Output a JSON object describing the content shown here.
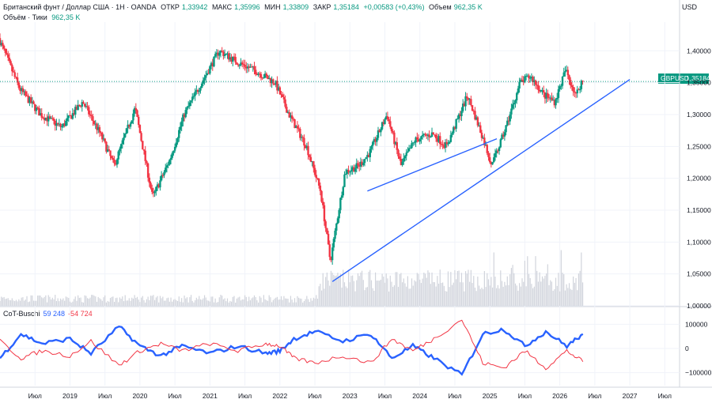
{
  "header": {
    "line1": {
      "symbol": "Британский фунт / Доллар США · 1Н · OANDA",
      "open_label": "ОТКР",
      "open": "1,33942",
      "high_label": "МАКС",
      "high": "1,35996",
      "low_label": "МИН",
      "low": "1,33809",
      "close_label": "ЗАКР",
      "close": "1,35184",
      "change": "+0,00583 (+0,43%)",
      "vol_label": "Объем",
      "vol": "962,35 K"
    },
    "line2": {
      "label": "Объём · Тики",
      "value": "962,35 K"
    }
  },
  "price_scale": {
    "currency": "USD"
  },
  "last_price": {
    "symbol": "GBPUSD",
    "value": "1,35184"
  },
  "indicator": {
    "name": "CoT-Buschi",
    "value1": "59 248",
    "value2": "-54 724"
  },
  "colors": {
    "up": "#089981",
    "down": "#f23645",
    "trendline": "#2962ff",
    "cot1": "#2962ff",
    "cot2": "#f23645",
    "volume": "#d1d4dc",
    "grid": "#f0f3fa"
  },
  "chart_data": [
    {
      "type": "candlestick",
      "symbol": "GBPUSD",
      "timeframe": "1W",
      "y_ticks": [
        "1,40000",
        "1,35000",
        "1,30000",
        "1,25000",
        "1,20000",
        "1,15000",
        "1,10000",
        "1,05000",
        "1,00000"
      ],
      "x_ticks": [
        "Июл",
        "2019",
        "Июл",
        "2020",
        "Июл",
        "2021",
        "Июл",
        "2022",
        "Июл",
        "2023",
        "Июл",
        "2024",
        "Июл",
        "2025",
        "Июл",
        "2026",
        "Июл",
        "2027",
        "Июл"
      ],
      "ylim": [
        1.0,
        1.445
      ],
      "price_path": [
        {
          "t": 2018.0,
          "p": 1.42
        },
        {
          "t": 2018.3,
          "p": 1.34
        },
        {
          "t": 2018.6,
          "p": 1.3
        },
        {
          "t": 2018.9,
          "p": 1.28
        },
        {
          "t": 2019.2,
          "p": 1.32
        },
        {
          "t": 2019.45,
          "p": 1.27
        },
        {
          "t": 2019.65,
          "p": 1.22
        },
        {
          "t": 2019.95,
          "p": 1.31
        },
        {
          "t": 2020.2,
          "p": 1.17
        },
        {
          "t": 2020.45,
          "p": 1.23
        },
        {
          "t": 2020.65,
          "p": 1.3
        },
        {
          "t": 2020.95,
          "p": 1.36
        },
        {
          "t": 2021.15,
          "p": 1.4
        },
        {
          "t": 2021.45,
          "p": 1.38
        },
        {
          "t": 2021.65,
          "p": 1.37
        },
        {
          "t": 2021.95,
          "p": 1.35
        },
        {
          "t": 2022.15,
          "p": 1.3
        },
        {
          "t": 2022.4,
          "p": 1.25
        },
        {
          "t": 2022.6,
          "p": 1.18
        },
        {
          "t": 2022.74,
          "p": 1.07
        },
        {
          "t": 2022.95,
          "p": 1.21
        },
        {
          "t": 2023.15,
          "p": 1.22
        },
        {
          "t": 2023.3,
          "p": 1.24
        },
        {
          "t": 2023.55,
          "p": 1.3
        },
        {
          "t": 2023.75,
          "p": 1.22
        },
        {
          "t": 2023.95,
          "p": 1.26
        },
        {
          "t": 2024.2,
          "p": 1.27
        },
        {
          "t": 2024.4,
          "p": 1.25
        },
        {
          "t": 2024.55,
          "p": 1.29
        },
        {
          "t": 2024.7,
          "p": 1.33
        },
        {
          "t": 2024.9,
          "p": 1.27
        },
        {
          "t": 2025.05,
          "p": 1.22
        },
        {
          "t": 2025.25,
          "p": 1.28
        },
        {
          "t": 2025.45,
          "p": 1.35
        },
        {
          "t": 2025.6,
          "p": 1.36
        },
        {
          "t": 2025.8,
          "p": 1.33
        },
        {
          "t": 2025.95,
          "p": 1.32
        },
        {
          "t": 2026.1,
          "p": 1.37
        },
        {
          "t": 2026.25,
          "p": 1.33
        },
        {
          "t": 2026.33,
          "p": 1.352
        }
      ],
      "trendlines": [
        {
          "from": {
            "t": 2022.75,
            "p": 1.038
          },
          "to": {
            "t": 2027.0,
            "p": 1.355
          }
        },
        {
          "from": {
            "t": 2023.25,
            "p": 1.18
          },
          "to": {
            "t": 2025.1,
            "p": 1.262
          }
        }
      ]
    },
    {
      "type": "line",
      "name": "CoT-Buschi",
      "y_ticks": [
        "100000",
        "0",
        "-100000"
      ],
      "ylim": [
        -150000,
        150000
      ],
      "series": [
        {
          "values": [
            {
              "t": 2018.0,
              "v": -40000
            },
            {
              "t": 2018.3,
              "v": 60000
            },
            {
              "t": 2018.6,
              "v": 20000
            },
            {
              "t": 2019.0,
              "v": 40000
            },
            {
              "t": 2019.3,
              "v": -20000
            },
            {
              "t": 2019.7,
              "v": 90000
            },
            {
              "t": 2020.0,
              "v": 10000
            },
            {
              "t": 2020.3,
              "v": -30000
            },
            {
              "t": 2020.6,
              "v": 10000
            },
            {
              "t": 2021.0,
              "v": -20000
            },
            {
              "t": 2021.4,
              "v": 10000
            },
            {
              "t": 2021.8,
              "v": -20000
            },
            {
              "t": 2022.0,
              "v": -10000
            },
            {
              "t": 2022.2,
              "v": 40000
            },
            {
              "t": 2022.5,
              "v": 70000
            },
            {
              "t": 2022.9,
              "v": 30000
            },
            {
              "t": 2023.3,
              "v": 60000
            },
            {
              "t": 2023.6,
              "v": -40000
            },
            {
              "t": 2023.9,
              "v": 10000
            },
            {
              "t": 2024.2,
              "v": -40000
            },
            {
              "t": 2024.6,
              "v": -110000
            },
            {
              "t": 2024.9,
              "v": 60000
            },
            {
              "t": 2025.2,
              "v": 80000
            },
            {
              "t": 2025.5,
              "v": 10000
            },
            {
              "t": 2025.8,
              "v": 70000
            },
            {
              "t": 2026.1,
              "v": 10000
            },
            {
              "t": 2026.33,
              "v": 59248
            }
          ]
        },
        {
          "values": [
            {
              "t": 2018.0,
              "v": 30000
            },
            {
              "t": 2018.3,
              "v": -40000
            },
            {
              "t": 2018.6,
              "v": -10000
            },
            {
              "t": 2019.0,
              "v": -30000
            },
            {
              "t": 2019.3,
              "v": 30000
            },
            {
              "t": 2019.7,
              "v": -70000
            },
            {
              "t": 2020.0,
              "v": -10000
            },
            {
              "t": 2020.3,
              "v": 20000
            },
            {
              "t": 2020.6,
              "v": -10000
            },
            {
              "t": 2021.0,
              "v": 20000
            },
            {
              "t": 2021.4,
              "v": -10000
            },
            {
              "t": 2021.8,
              "v": 20000
            },
            {
              "t": 2022.0,
              "v": 10000
            },
            {
              "t": 2022.2,
              "v": -40000
            },
            {
              "t": 2022.5,
              "v": -60000
            },
            {
              "t": 2022.9,
              "v": -30000
            },
            {
              "t": 2023.3,
              "v": -60000
            },
            {
              "t": 2023.6,
              "v": 40000
            },
            {
              "t": 2023.9,
              "v": -10000
            },
            {
              "t": 2024.2,
              "v": 40000
            },
            {
              "t": 2024.6,
              "v": 120000
            },
            {
              "t": 2024.9,
              "v": -60000
            },
            {
              "t": 2025.2,
              "v": -80000
            },
            {
              "t": 2025.5,
              "v": -10000
            },
            {
              "t": 2025.8,
              "v": -80000
            },
            {
              "t": 2026.1,
              "v": -10000
            },
            {
              "t": 2026.33,
              "v": -54724
            }
          ]
        }
      ]
    }
  ]
}
